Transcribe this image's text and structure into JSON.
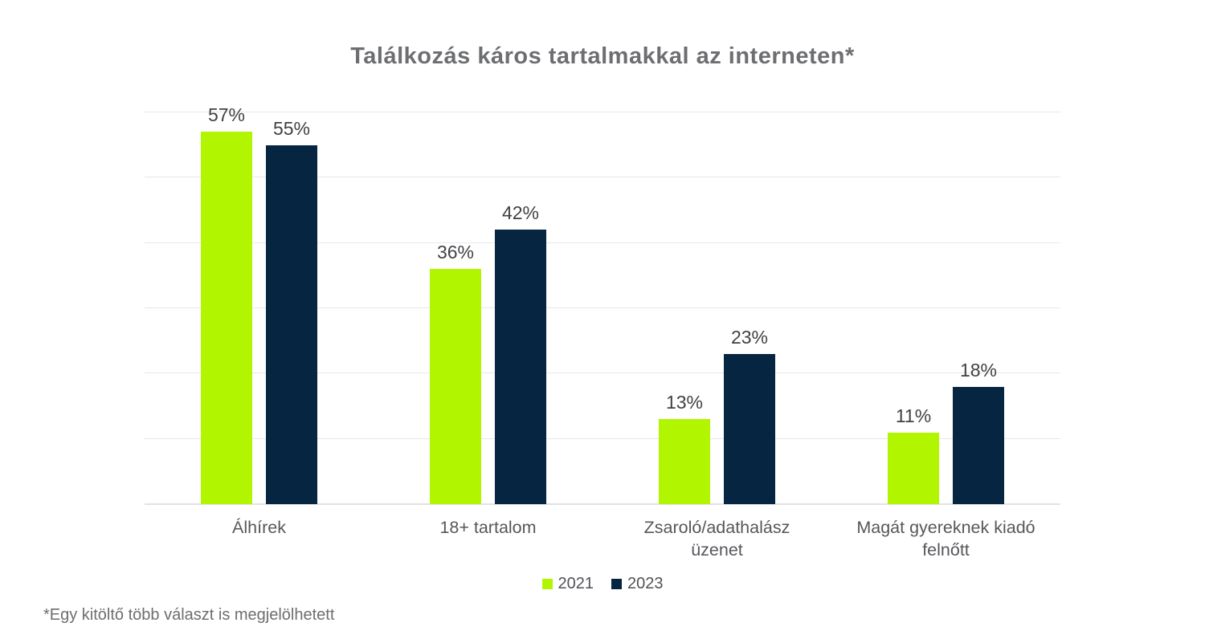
{
  "title": "Találkozás káros tartalmakkal az interneten*",
  "footnote": "*Egy kitöltő több választ is megjelölhetett",
  "colors": {
    "series_2021": "#b2f500",
    "series_2023": "#052541",
    "title_text": "#6d6e71",
    "value_label_text": "#404145",
    "axis_label_text": "#55575b",
    "gridline": "#e6e7e8"
  },
  "chart_data": {
    "type": "bar",
    "title": "Találkozás káros tartalmakkal az interneten*",
    "categories": [
      "Álhírek",
      "18+ tartalom",
      "Zsaroló/adathalász\nüzenet",
      "Magát gyereknek kiadó\nfelnőtt"
    ],
    "series": [
      {
        "name": "2021",
        "color": "#b2f500",
        "values": [
          57,
          36,
          13,
          11
        ]
      },
      {
        "name": "2023",
        "color": "#052541",
        "values": [
          55,
          42,
          23,
          18
        ]
      }
    ],
    "value_suffix": "%",
    "xlabel": "",
    "ylabel": "",
    "ylim": [
      0,
      60
    ],
    "grid_step": 10,
    "grid": "horizontal",
    "y_axis_labels_shown": false,
    "legend_position": "bottom"
  }
}
